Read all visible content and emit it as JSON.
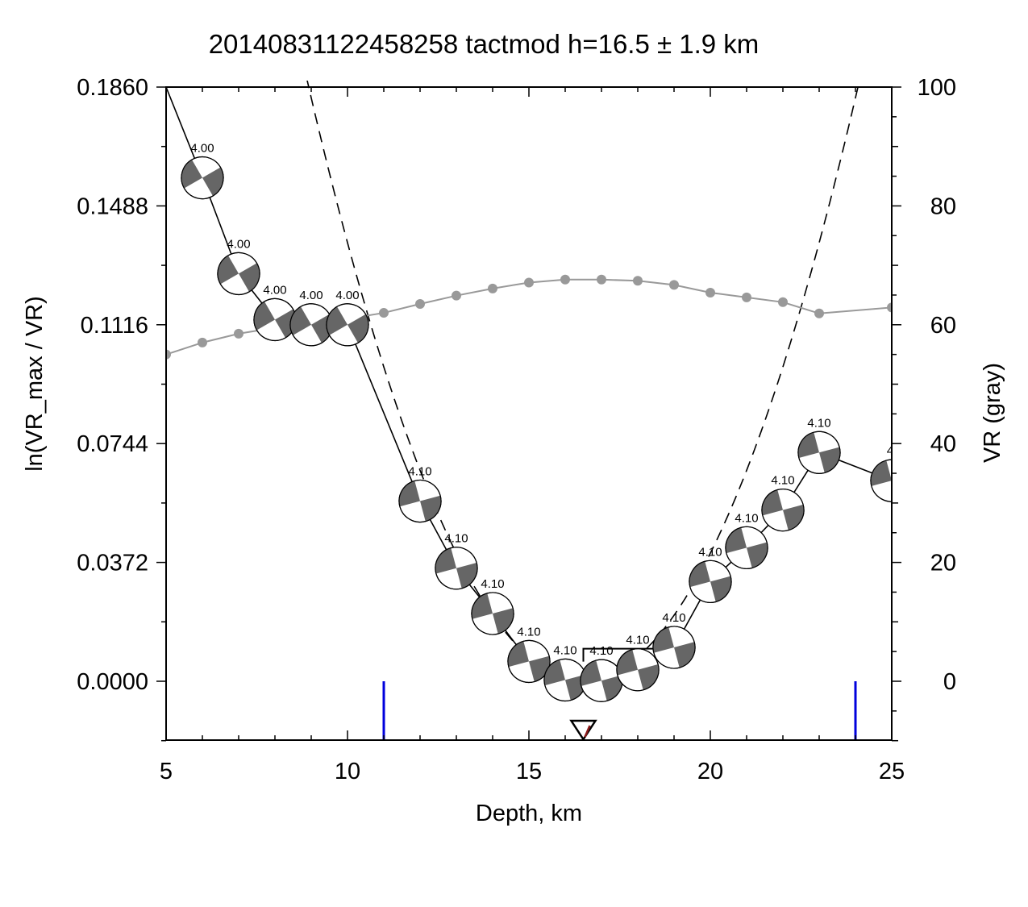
{
  "chart_data": {
    "type": "line",
    "title": "20140831122458258  tactmod h=16.5 ± 1.9 km",
    "xlabel": "Depth, km",
    "ylabel_left": "ln(VR_max / VR)",
    "ylabel_right": "VR (gray)",
    "xlim": [
      5,
      25
    ],
    "ylim_left": [
      -0.018,
      0.186
    ],
    "ylim_right": [
      -10,
      100
    ],
    "x_ticks": [
      5,
      10,
      15,
      20,
      25
    ],
    "y_ticks_left": [
      "0.0000",
      "0.0372",
      "0.0744",
      "0.1116",
      "0.1488",
      "0.1860"
    ],
    "y_tick_values_left": [
      0,
      0.0372,
      0.0744,
      0.1116,
      0.1488,
      0.186
    ],
    "y_ticks_right": [
      0,
      20,
      40,
      60,
      80,
      100
    ],
    "best_depth": 16.5,
    "depth_uncertainty": 1.9,
    "error_bounds": [
      11,
      24
    ],
    "series": [
      {
        "name": "ln(VR_max / VR)",
        "x": [
          5,
          6,
          7,
          8,
          9,
          10,
          12,
          13,
          14,
          15,
          16,
          17,
          18,
          19,
          20,
          21,
          22,
          23,
          25
        ],
        "y": [
          0.186,
          0.1576,
          0.1276,
          0.1132,
          0.1116,
          0.1116,
          0.0564,
          0.0354,
          0.0212,
          0.0062,
          0.0004,
          0.0002,
          0.0036,
          0.0106,
          0.0312,
          0.0418,
          0.0536,
          0.0716,
          0.0628
        ]
      },
      {
        "name": "VR",
        "x": [
          5,
          6,
          7,
          8,
          9,
          10,
          11,
          12,
          13,
          14,
          15,
          16,
          17,
          18,
          19,
          20,
          21,
          22,
          23,
          25
        ],
        "y": [
          55,
          57,
          58.5,
          59.5,
          60.5,
          61,
          62,
          63.5,
          64.9,
          66.1,
          67.1,
          67.6,
          67.6,
          67.4,
          66.7,
          65.4,
          64.6,
          63.8,
          61.9,
          62.9
        ]
      }
    ],
    "fit_parabola": {
      "vertex_depth": 16.5,
      "vertex_value": 0.0004,
      "curvature": 0.00324
    },
    "best_segment": {
      "from_depth": 16.5,
      "to_depth": 18.7,
      "value": 0.0102
    },
    "mechanisms": [
      {
        "depth": 6,
        "mag_label": "4.00",
        "rot": -30
      },
      {
        "depth": 7,
        "mag_label": "4.00",
        "rot": -30
      },
      {
        "depth": 8,
        "mag_label": "4.00",
        "rot": -30
      },
      {
        "depth": 9,
        "mag_label": "4.00",
        "rot": -30
      },
      {
        "depth": 10,
        "mag_label": "4.00",
        "rot": -30
      },
      {
        "depth": 12,
        "mag_label": "4.10",
        "rot": -15
      },
      {
        "depth": 13,
        "mag_label": "4.10",
        "rot": -15
      },
      {
        "depth": 14,
        "mag_label": "4.10",
        "rot": -15
      },
      {
        "depth": 15,
        "mag_label": "4.10",
        "rot": -15
      },
      {
        "depth": 16,
        "mag_label": "4.10",
        "rot": -15
      },
      {
        "depth": 17,
        "mag_label": "4.10",
        "rot": -15
      },
      {
        "depth": 18,
        "mag_label": "4.10",
        "rot": -15
      },
      {
        "depth": 19,
        "mag_label": "4.10",
        "rot": -15
      },
      {
        "depth": 20,
        "mag_label": "4.10",
        "rot": -15
      },
      {
        "depth": 21,
        "mag_label": "4.10",
        "rot": -15
      },
      {
        "depth": 22,
        "mag_label": "4.10",
        "rot": -15
      },
      {
        "depth": 23,
        "mag_label": "4.10",
        "rot": -15
      },
      {
        "depth": 25,
        "mag_label": "4.",
        "rot": -15
      }
    ],
    "colors": {
      "misfit_line": "#000000",
      "vr_line": "#999999",
      "vr_marker": "#999999",
      "error_bar": "#0000dd",
      "beachball_dark": "#666666",
      "beachball_light": "#ffffff",
      "best_marker_inner": "#8b1a1a"
    }
  }
}
